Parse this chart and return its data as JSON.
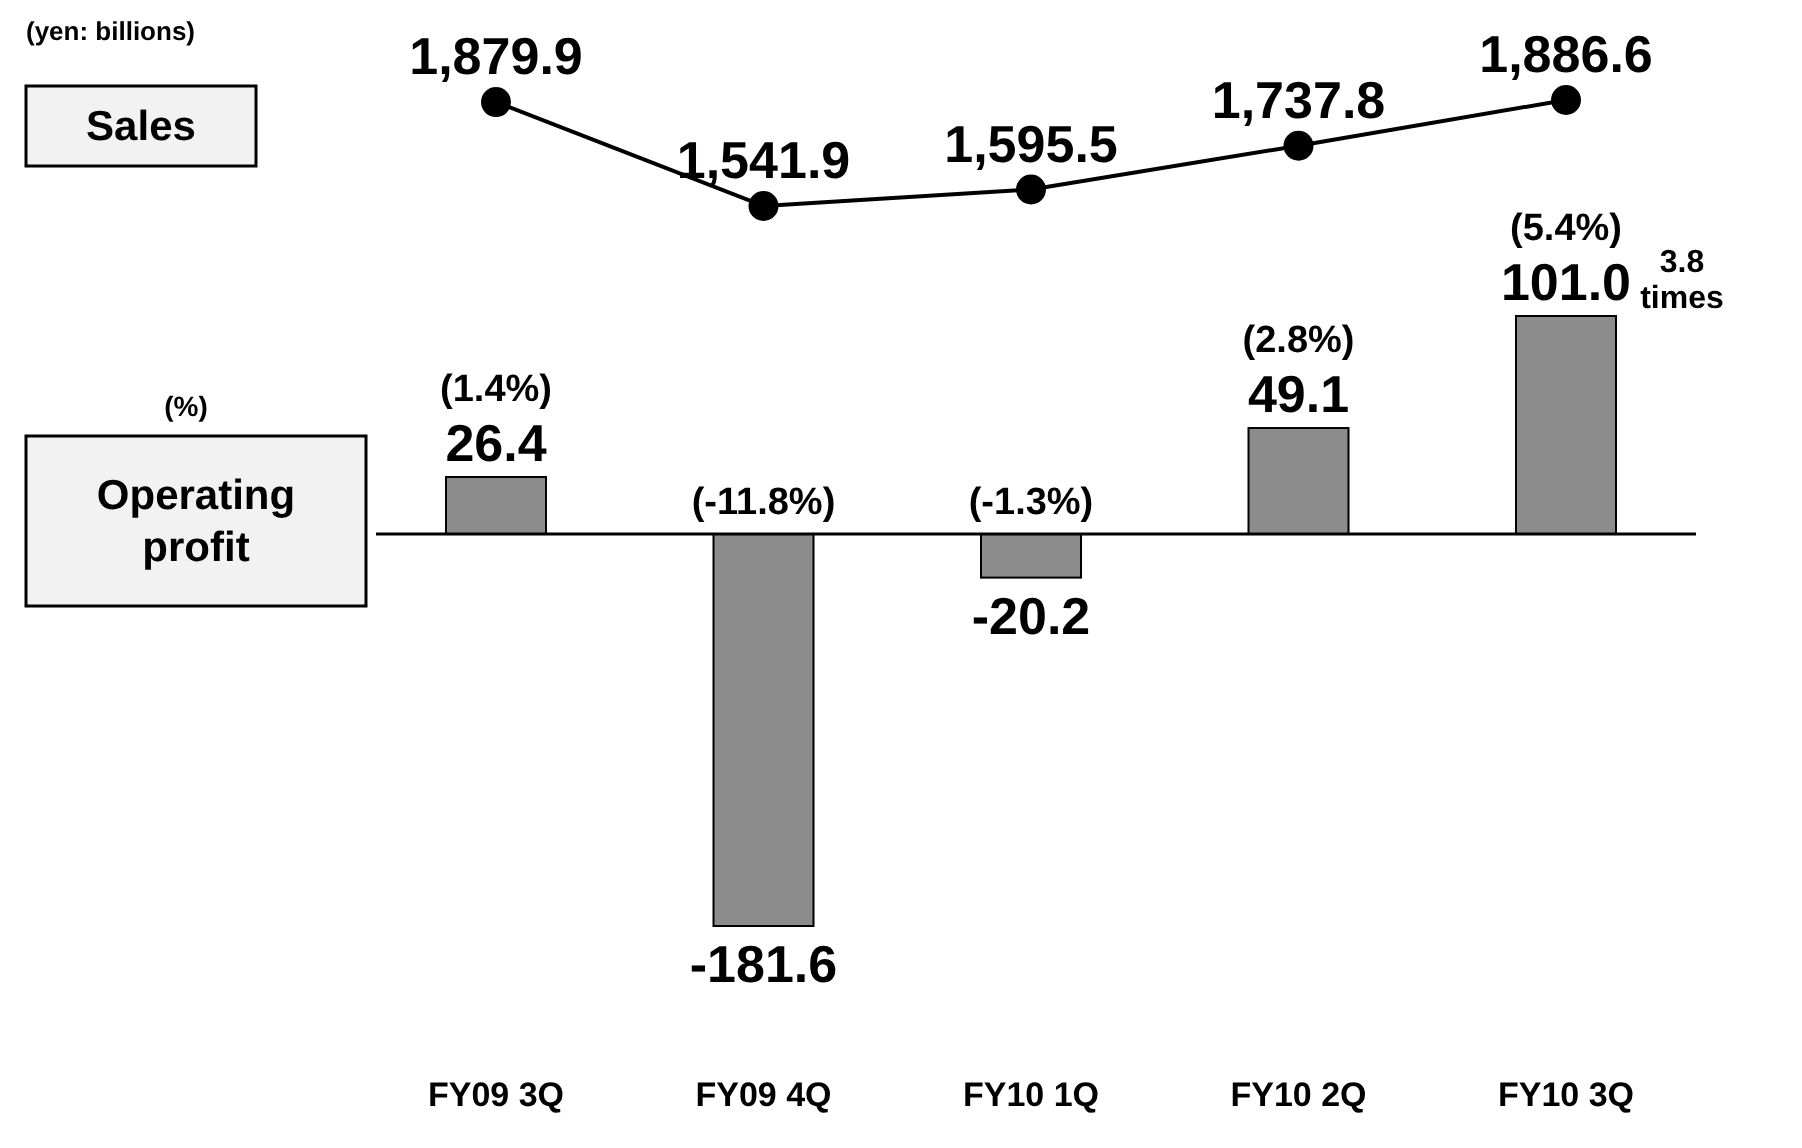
{
  "chart_data": [
    {
      "type": "line",
      "categories": [
        null,
        null,
        null,
        null,
        null
      ],
      "marker": "circle",
      "series": [
        {
          "name": "Sales",
          "color": "#000000",
          "values": [
            1879.9,
            1541.9,
            1595.5,
            1737.8,
            1886.6
          ],
          "value_labels": [
            "1,879.9",
            "1,541.9",
            "1,595.5",
            "1,737.8",
            "1,886.6"
          ]
        }
      ],
      "annotations": [
        "(yen: billions)"
      ]
    },
    {
      "type": "bar",
      "categories": [
        "FY09 3Q",
        "FY09 4Q",
        "FY10 1Q",
        "FY10 2Q",
        "FY10 3Q"
      ],
      "series": [
        {
          "name": "Operating profit",
          "color": "#8c8c8c",
          "values": [
            26.4,
            -181.6,
            -20.2,
            49.1,
            101.0
          ],
          "value_labels": [
            "26.4",
            "-181.6",
            "-20.2",
            "49.1",
            "101.0"
          ]
        }
      ],
      "annotations": [
        "(%)",
        {
          "text": "(1.4%)",
          "x": "FY09 3Q",
          "y": 26.4
        },
        {
          "text": "(-11.8%)",
          "x": "FY09 4Q",
          "y": 0
        },
        {
          "text": "(-1.3%)",
          "x": "FY10 1Q",
          "y": 0
        },
        {
          "text": "(2.8%)",
          "x": "FY10 2Q",
          "y": 49.1
        },
        {
          "text": "(5.4%)",
          "x": "FY10 3Q",
          "y": 101.0
        },
        {
          "text": "3.8 times",
          "x": "FY10 3Q",
          "y": 101.0
        }
      ]
    }
  ]
}
